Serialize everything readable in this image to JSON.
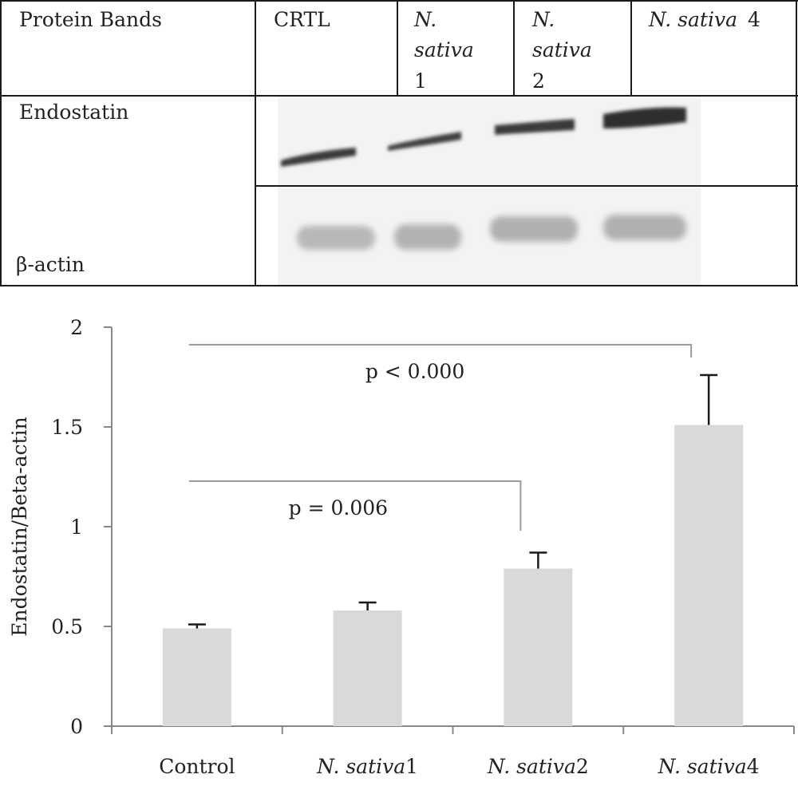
{
  "blot_table": {
    "header_label": "Protein Bands",
    "lanes": [
      {
        "name": "CRTL",
        "lines": [
          "CRTL"
        ],
        "italic": [
          false
        ]
      },
      {
        "name": "N. sativa 1",
        "lines": [
          "N.",
          "sativa",
          "1"
        ],
        "italic": [
          true,
          true,
          false
        ]
      },
      {
        "name": "N. sativa 2",
        "lines": [
          "N.",
          "sativa",
          "2"
        ],
        "italic": [
          true,
          true,
          false
        ]
      },
      {
        "name": "N. sativa 4",
        "lines": [
          "N. sativa",
          "4"
        ],
        "italic": [
          true,
          false
        ]
      }
    ],
    "rows": [
      {
        "label": "Endostatin"
      },
      {
        "label": "β-actin"
      }
    ]
  },
  "chart_data": {
    "type": "bar",
    "categories": [
      "Control",
      "N. sativa1",
      "N. sativa2",
      "N. sativa4"
    ],
    "category_parts": [
      {
        "italic": "",
        "plain": "Control"
      },
      {
        "italic": "N. sativa",
        "plain": "1"
      },
      {
        "italic": "N. sativa",
        "plain": "2"
      },
      {
        "italic": "N. sativa",
        "plain": "4"
      }
    ],
    "values": [
      0.49,
      0.58,
      0.79,
      1.51
    ],
    "errors": [
      0.02,
      0.04,
      0.08,
      0.25
    ],
    "ylabel": "Endostatin/Beta-actin",
    "xlabel": "",
    "ylim": [
      0,
      2
    ],
    "yticks": [
      "0",
      "0.5",
      "1",
      "1.5",
      "2"
    ],
    "grid": false,
    "bar_color": "#d9d9d9",
    "significance": [
      {
        "from": "Control",
        "to": "N. sativa2",
        "label": "p = 0.006"
      },
      {
        "from": "Control",
        "to": "N. sativa4",
        "label": "p < 0.000"
      }
    ]
  }
}
